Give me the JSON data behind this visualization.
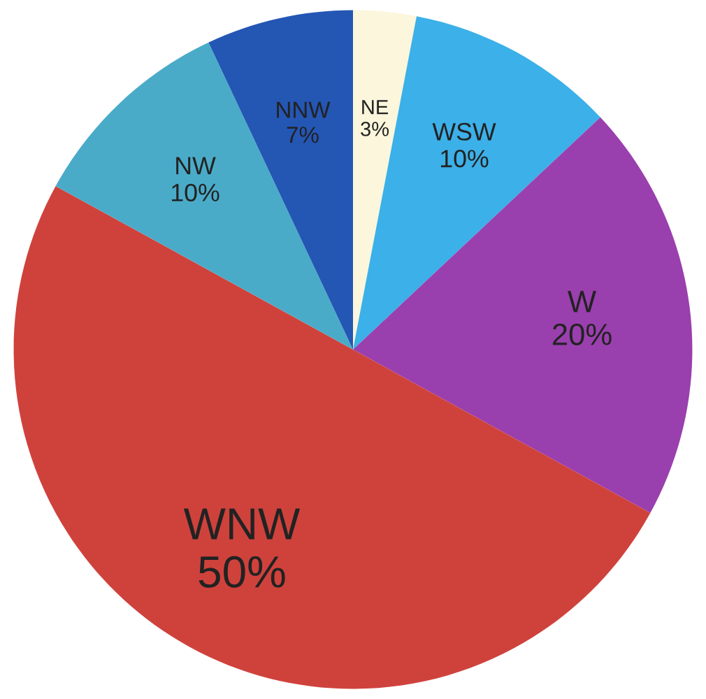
{
  "chart_data": {
    "type": "pie",
    "categories": [
      "NE",
      "WSW",
      "W",
      "WNW",
      "NW",
      "NNW"
    ],
    "values": [
      3,
      10,
      20,
      50,
      10,
      7
    ],
    "colors": [
      "#fbf6dc",
      "#3cb0e8",
      "#9a3fae",
      "#cf423c",
      "#4aabc8",
      "#2456b4"
    ],
    "value_labels": [
      "3%",
      "10%",
      "20%",
      "50%",
      "10%",
      "7%"
    ]
  }
}
